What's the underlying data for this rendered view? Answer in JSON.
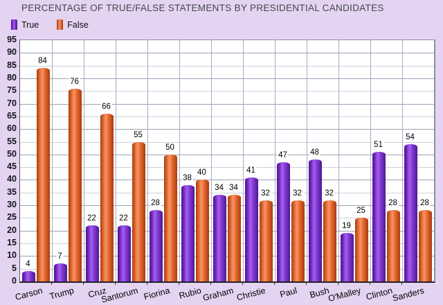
{
  "title": "PERCENTAGE OF TRUE/FALSE STATEMENTS BY PRESIDENTIAL CANDIDATES",
  "chart_data": {
    "type": "bar",
    "title": "PERCENTAGE OF TRUE/FALSE STATEMENTS BY PRESIDENTIAL CANDIDATES",
    "categories": [
      "Carson",
      "Trump",
      "Cruz",
      "Santorum",
      "Fiorina",
      "Rubio",
      "Graham",
      "Christie",
      "Paul",
      "Bush",
      "O'Malley",
      "Clinton",
      "Sanders"
    ],
    "series": [
      {
        "name": "True",
        "color": "#7d2fd0",
        "values": [
          4,
          7,
          22,
          22,
          28,
          38,
          34,
          41,
          47,
          48,
          19,
          51,
          54
        ]
      },
      {
        "name": "False",
        "color": "#e6672e",
        "values": [
          84,
          76,
          66,
          55,
          50,
          40,
          34,
          32,
          32,
          32,
          25,
          28,
          28
        ]
      }
    ],
    "xlabel": "",
    "ylabel": "",
    "ylim": [
      0,
      95
    ],
    "ytick_step": 5,
    "grid": true,
    "value_labels": true,
    "legend_position": "top-left"
  },
  "colors": {
    "background": "#e4d4f1",
    "plot_background": "#ffffff",
    "true_bar": "#7d2fd0",
    "false_bar": "#e6672e",
    "grid_major": "#9ba1b4",
    "grid_minor": "#cdd1dd",
    "title_text": "#45454d",
    "label_text": "#000000"
  }
}
